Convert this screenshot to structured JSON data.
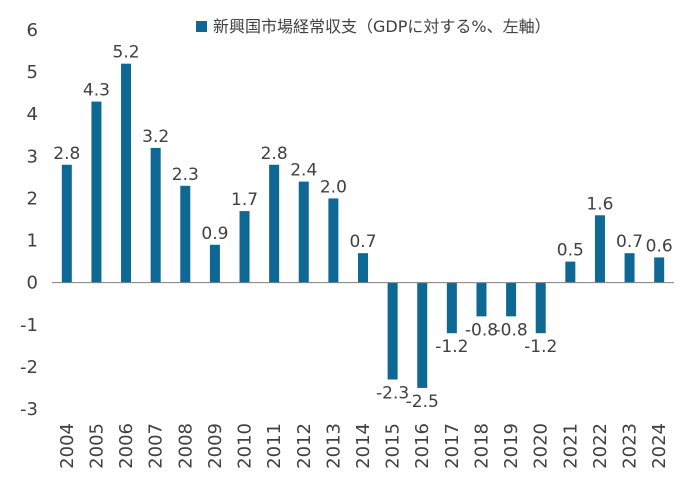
{
  "chart_data": {
    "type": "bar",
    "title": "",
    "xlabel": "",
    "ylabel": "",
    "legend": {
      "label": "新興国市場経常収支（GDPに対する%、左軸）",
      "position": "top"
    },
    "categories": [
      "2004",
      "2005",
      "2006",
      "2007",
      "2008",
      "2009",
      "2010",
      "2011",
      "2012",
      "2013",
      "2014",
      "2015",
      "2016",
      "2017",
      "2018",
      "2019",
      "2020",
      "2021",
      "2022",
      "2023",
      "2024"
    ],
    "values": [
      2.8,
      4.3,
      5.2,
      3.2,
      2.3,
      0.9,
      1.7,
      2.8,
      2.4,
      2.0,
      0.7,
      -2.3,
      -2.5,
      -1.2,
      -0.8,
      -0.8,
      -1.2,
      0.5,
      1.6,
      0.7,
      0.6
    ],
    "data_labels": [
      "2.8",
      "4.3",
      "5.2",
      "3.2",
      "2.3",
      "0.9",
      "1.7",
      "2.8",
      "2.4",
      "2.0",
      "0.7",
      "-2.3",
      "-2.5",
      "-1.2",
      "-0.8",
      "-0.8",
      "-1.2",
      "0.5",
      "1.6",
      "0.7",
      "0.6"
    ],
    "ylim": [
      -3,
      6
    ],
    "yticks": [
      6,
      5,
      4,
      3,
      2,
      1,
      0,
      -1,
      -2,
      -3
    ],
    "grid": false,
    "bar_color": "#0e6894",
    "axis_color": "#7f7f7f"
  }
}
